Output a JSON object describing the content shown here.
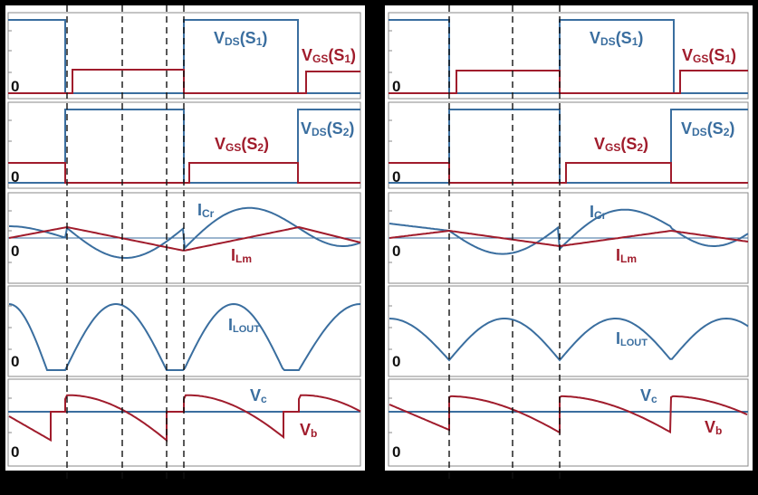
{
  "colors": {
    "blue": "#3a6e9f",
    "red": "#a01c2c",
    "black": "#111111",
    "panel_bg": "#ffffff",
    "frame": "#000000"
  },
  "zero_label": "0",
  "left": {
    "title": "",
    "rows": [
      {
        "id": "vds-vgs-s1",
        "labels": [
          {
            "text": "V",
            "sub": "DS",
            "tail": "(S",
            "tailsub": "1",
            "end": ")",
            "color": "blue"
          },
          {
            "text": "V",
            "sub": "GS",
            "tail": "(S",
            "tailsub": "1",
            "end": ")",
            "color": "red"
          }
        ]
      },
      {
        "id": "vds-vgs-s2",
        "labels": [
          {
            "text": "V",
            "sub": "GS",
            "tail": "(S",
            "tailsub": "2",
            "end": ")",
            "color": "red"
          },
          {
            "text": "V",
            "sub": "DS",
            "tail": "(S",
            "tailsub": "2",
            "end": ")",
            "color": "blue"
          }
        ]
      },
      {
        "id": "icr-ilm",
        "labels": [
          {
            "text": "I",
            "sub": "Cr",
            "color": "blue"
          },
          {
            "text": "I",
            "sub": "Lm",
            "color": "red"
          }
        ]
      },
      {
        "id": "ilout",
        "labels": [
          {
            "text": "I",
            "sub": "LOUT",
            "color": "blue"
          }
        ]
      },
      {
        "id": "vc-vb",
        "labels": [
          {
            "text": "V",
            "sub": "c",
            "color": "blue"
          },
          {
            "text": "V",
            "sub": "b",
            "color": "red"
          }
        ]
      }
    ]
  },
  "right": {
    "title": "",
    "rows": [
      {
        "id": "vds-vgs-s1",
        "labels": [
          {
            "text": "V",
            "sub": "DS",
            "tail": "(S",
            "tailsub": "1",
            "end": ")",
            "color": "blue"
          },
          {
            "text": "V",
            "sub": "GS",
            "tail": "(S",
            "tailsub": "1",
            "end": ")",
            "color": "red"
          }
        ]
      },
      {
        "id": "vds-vgs-s2",
        "labels": [
          {
            "text": "V",
            "sub": "GS",
            "tail": "(S",
            "tailsub": "2",
            "end": ")",
            "color": "red"
          },
          {
            "text": "V",
            "sub": "DS",
            "tail": "(S",
            "tailsub": "2",
            "end": ")",
            "color": "blue"
          }
        ]
      },
      {
        "id": "icr-ilm",
        "labels": [
          {
            "text": "I",
            "sub": "Cr",
            "color": "blue"
          },
          {
            "text": "I",
            "sub": "Lm",
            "color": "red"
          }
        ]
      },
      {
        "id": "ilout",
        "labels": [
          {
            "text": "I",
            "sub": "LOUT",
            "color": "blue"
          }
        ]
      },
      {
        "id": "vc-vb",
        "labels": [
          {
            "text": "V",
            "sub": "c",
            "color": "blue"
          },
          {
            "text": "V",
            "sub": "b",
            "color": "red"
          }
        ]
      }
    ]
  }
}
